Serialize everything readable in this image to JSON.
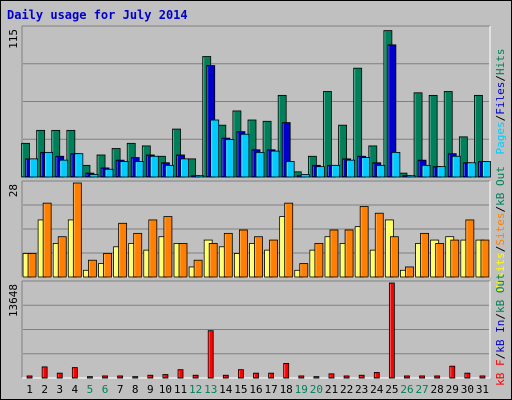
{
  "chart_data": {
    "type": "bar",
    "title": "Daily usage for July 2014",
    "categories": [
      "1",
      "2",
      "3",
      "4",
      "5",
      "6",
      "7",
      "8",
      "9",
      "10",
      "11",
      "12",
      "13",
      "14",
      "15",
      "16",
      "17",
      "18",
      "19",
      "20",
      "21",
      "22",
      "23",
      "24",
      "25",
      "26",
      "27",
      "28",
      "29",
      "30",
      "31"
    ],
    "weekend_days": [
      "5",
      "6",
      "12",
      "13",
      "19",
      "20",
      "26",
      "27"
    ],
    "panels": [
      {
        "id": "top",
        "max_label": "115",
        "ylim": [
          0,
          115
        ],
        "right_label": [
          "Pages",
          "/",
          "Files",
          "/",
          "Hits"
        ],
        "right_label_colors": [
          "#00ccff",
          "#000000",
          "#0000cc",
          "#000000",
          "#00805a"
        ],
        "series": [
          {
            "name": "Hits",
            "color": "#00805a",
            "values": [
              26,
              36,
              36,
              36,
              9,
              17,
              22,
              26,
              24,
              16,
              37,
              14,
              93,
              40,
              51,
              44,
              43,
              63,
              4,
              16,
              66,
              40,
              84,
              24,
              113,
              3,
              65,
              63,
              66,
              31,
              63
            ]
          },
          {
            "name": "Files",
            "color": "#0000cc",
            "values": [
              14,
              19,
              16,
              18,
              3,
              7,
              13,
              15,
              17,
              11,
              17,
              1,
              86,
              30,
              35,
              21,
              21,
              42,
              1,
              9,
              9,
              14,
              16,
              11,
              102,
              1,
              13,
              8,
              18,
              11,
              12
            ]
          },
          {
            "name": "Pages",
            "color": "#00ccff",
            "values": [
              14,
              19,
              13,
              18,
              2,
              6,
              12,
              12,
              16,
              9,
              14,
              1,
              44,
              29,
              33,
              19,
              20,
              12,
              2,
              8,
              9,
              13,
              15,
              9,
              19,
              1,
              9,
              8,
              16,
              11,
              12
            ]
          }
        ]
      },
      {
        "id": "mid",
        "max_label": "28",
        "ylim": [
          0,
          28
        ],
        "right_label": [
          "Visits",
          "/",
          "Sites",
          "/",
          "kB Out"
        ],
        "right_label_colors": [
          "#ffff00",
          "#000000",
          "#ff8000",
          "#000000",
          "#00805a"
        ],
        "series": [
          {
            "name": "Visits",
            "color": "#ffff66",
            "values": [
              7,
              17,
              10,
              17,
              2,
              4,
              9,
              10,
              8,
              12,
              10,
              3,
              11,
              9,
              7,
              10,
              8,
              18,
              2,
              8,
              12,
              10,
              15,
              8,
              17,
              2,
              10,
              11,
              12,
              11,
              11
            ]
          },
          {
            "name": "Sites",
            "color": "#ff8000",
            "values": [
              7,
              22,
              12,
              28,
              5,
              7,
              16,
              13,
              17,
              18,
              10,
              5,
              10,
              13,
              14,
              12,
              11,
              22,
              4,
              10,
              14,
              14,
              21,
              19,
              12,
              3,
              13,
              10,
              11,
              17,
              11
            ]
          }
        ]
      },
      {
        "id": "bot",
        "max_label": "13648",
        "ylim": [
          0,
          13648
        ],
        "right_label": [
          "kB F",
          "/",
          "kB In",
          "/",
          "kB Out"
        ],
        "right_label_colors": [
          "#ff0000",
          "#000000",
          "#0000cc",
          "#000000",
          "#00805a"
        ],
        "series": [
          {
            "name": "kB F",
            "color": "#ff0000",
            "values": [
              300,
              1600,
              700,
              1500,
              200,
              300,
              300,
              200,
              400,
              500,
              1200,
              400,
              6800,
              400,
              1200,
              700,
              700,
              2100,
              300,
              200,
              600,
              300,
              400,
              800,
              13648,
              300,
              300,
              300,
              1700,
              700,
              300
            ]
          }
        ]
      }
    ]
  }
}
